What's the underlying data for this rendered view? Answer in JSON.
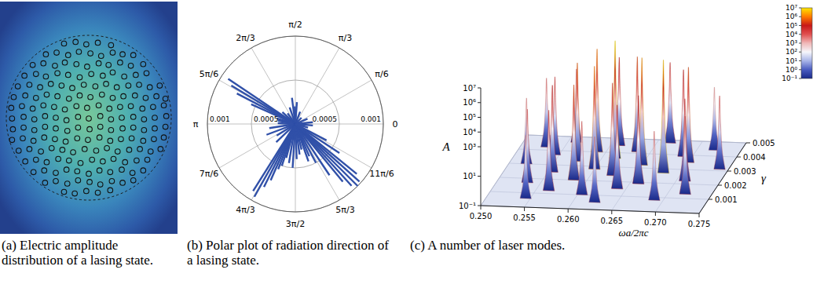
{
  "chart_data": [
    {
      "type": "scatter",
      "title": "(a) Electric amplitude distribution of a lasing state.",
      "marker": "circle",
      "tick_labels": false,
      "xlim": [
        -1,
        1
      ],
      "ylim": [
        -1,
        1
      ],
      "x": [
        -0.3,
        -0.16,
        -0.03,
        0.11,
        0.27,
        -0.52,
        -0.39,
        -0.25,
        -0.12,
        0.02,
        0.15,
        0.29,
        0.41,
        0.54,
        -0.68,
        -0.55,
        -0.41,
        -0.29,
        -0.15,
        -0.02,
        0.12,
        0.24,
        0.38,
        0.51,
        0.66,
        -0.78,
        -0.64,
        -0.52,
        -0.38,
        -0.25,
        -0.11,
        0.03,
        0.17,
        0.29,
        0.43,
        0.57,
        0.7,
        -0.86,
        -0.72,
        -0.59,
        -0.46,
        -0.33,
        -0.2,
        -0.06,
        0.08,
        0.21,
        0.34,
        0.48,
        0.61,
        0.74,
        0.86,
        -0.91,
        -0.77,
        -0.64,
        -0.51,
        -0.38,
        -0.24,
        -0.11,
        0.02,
        0.16,
        0.29,
        0.42,
        0.56,
        0.69,
        0.82,
        0.93,
        -0.94,
        -0.81,
        -0.68,
        -0.55,
        -0.42,
        -0.29,
        -0.15,
        -0.02,
        0.12,
        0.25,
        0.38,
        0.51,
        0.65,
        0.78,
        0.91,
        -0.93,
        -0.79,
        -0.66,
        -0.53,
        -0.4,
        -0.27,
        -0.13,
        0.0,
        0.14,
        0.27,
        0.4,
        0.54,
        0.67,
        0.8,
        0.94,
        -0.92,
        -0.79,
        -0.66,
        -0.53,
        -0.4,
        -0.26,
        -0.13,
        0.01,
        0.14,
        0.27,
        0.41,
        0.54,
        0.67,
        0.8,
        0.93,
        -0.93,
        -0.8,
        -0.67,
        -0.54,
        -0.41,
        -0.28,
        -0.14,
        -0.01,
        0.13,
        0.26,
        0.39,
        0.52,
        0.66,
        0.79,
        0.91,
        -0.85,
        -0.72,
        -0.58,
        -0.45,
        -0.32,
        -0.19,
        -0.05,
        0.09,
        0.22,
        0.35,
        0.49,
        0.62,
        0.75,
        0.87,
        -0.77,
        -0.64,
        -0.51,
        -0.37,
        -0.24,
        -0.1,
        0.04,
        0.17,
        0.3,
        0.44,
        0.58,
        0.71,
        -0.67,
        -0.54,
        -0.4,
        -0.27,
        -0.14,
        0.0,
        0.13,
        0.26,
        0.4,
        0.53,
        0.66,
        -0.53,
        -0.4,
        -0.26,
        -0.13,
        0.01,
        0.14,
        0.28,
        0.41,
        0.54,
        -0.3,
        -0.17,
        -0.03,
        0.11,
        0.26
      ],
      "values": [
        0.9,
        0.92,
        0.89,
        0.91,
        0.88,
        0.77,
        0.79,
        0.76,
        0.8,
        0.78,
        0.75,
        0.79,
        0.77,
        0.76,
        0.64,
        0.66,
        0.63,
        0.67,
        0.65,
        0.62,
        0.66,
        0.64,
        0.67,
        0.63,
        0.65,
        0.51,
        0.53,
        0.5,
        0.54,
        0.52,
        0.49,
        0.53,
        0.51,
        0.55,
        0.5,
        0.52,
        0.54,
        0.38,
        0.4,
        0.37,
        0.41,
        0.39,
        0.36,
        0.4,
        0.38,
        0.41,
        0.37,
        0.39,
        0.4,
        0.37,
        0.39,
        0.25,
        0.27,
        0.24,
        0.28,
        0.26,
        0.23,
        0.27,
        0.25,
        0.28,
        0.24,
        0.26,
        0.27,
        0.24,
        0.26,
        0.23,
        0.12,
        0.14,
        0.11,
        0.15,
        0.13,
        0.1,
        0.14,
        0.12,
        0.15,
        0.11,
        0.13,
        0.14,
        0.11,
        0.13,
        0.15,
        -0.01,
        0.01,
        -0.02,
        0.02,
        0.0,
        -0.03,
        0.01,
        -0.01,
        0.02,
        -0.02,
        0.0,
        0.01,
        -0.02,
        0.0,
        0.02,
        -0.14,
        -0.12,
        -0.15,
        -0.11,
        -0.13,
        -0.16,
        -0.12,
        -0.14,
        -0.11,
        -0.15,
        -0.13,
        -0.12,
        -0.15,
        -0.13,
        -0.11,
        -0.27,
        -0.25,
        -0.28,
        -0.24,
        -0.26,
        -0.29,
        -0.25,
        -0.27,
        -0.24,
        -0.28,
        -0.26,
        -0.25,
        -0.28,
        -0.26,
        -0.24,
        -0.4,
        -0.38,
        -0.41,
        -0.37,
        -0.39,
        -0.42,
        -0.38,
        -0.4,
        -0.37,
        -0.41,
        -0.39,
        -0.38,
        -0.41,
        -0.38,
        -0.53,
        -0.51,
        -0.54,
        -0.5,
        -0.52,
        -0.55,
        -0.51,
        -0.53,
        -0.5,
        -0.54,
        -0.52,
        -0.51,
        -0.66,
        -0.64,
        -0.67,
        -0.63,
        -0.65,
        -0.68,
        -0.64,
        -0.66,
        -0.63,
        -0.67,
        -0.64,
        -0.79,
        -0.77,
        -0.8,
        -0.76,
        -0.78,
        -0.81,
        -0.77,
        -0.79,
        -0.76,
        -0.9,
        -0.92,
        -0.89,
        -0.91,
        -0.88
      ]
    },
    {
      "type": "polar",
      "title": "(b) Polar plot of radiation direction of a lasing state.",
      "color": "#3050a8",
      "grid": true,
      "rlim": [
        0,
        0.001
      ],
      "rticks": [
        0.0005,
        0.001
      ],
      "thetaticks": [
        0,
        {
          "value": 0.5236,
          "label": "π/6"
        },
        {
          "value": 1.0472,
          "label": "π/3"
        },
        {
          "value": 1.5708,
          "label": "π/2"
        },
        {
          "value": 2.0944,
          "label": "2π/3"
        },
        {
          "value": 2.618,
          "label": "5π/6"
        },
        {
          "value": 3.1416,
          "label": "π"
        },
        {
          "value": 3.6652,
          "label": "7π/6"
        },
        {
          "value": 4.1888,
          "label": "4π/3"
        },
        {
          "value": 4.7124,
          "label": "3π/2"
        },
        {
          "value": 5.236,
          "label": "5π/3"
        },
        {
          "value": 5.7596,
          "label": "11π/6"
        }
      ],
      "theta": [
        0.1,
        0.4,
        0.8,
        1.2,
        1.5,
        1.6,
        1.7,
        1.9,
        2.2,
        2.4,
        2.55,
        2.6,
        2.66,
        2.72,
        2.85,
        2.95,
        3.1,
        3.3,
        3.5,
        3.7,
        3.9,
        4.15,
        4.2,
        4.25,
        4.3,
        4.35,
        4.4,
        4.45,
        4.55,
        4.65,
        4.75,
        4.85,
        4.95,
        5.05,
        5.12,
        5.2,
        5.3,
        5.4,
        5.45,
        5.5,
        5.55,
        5.6,
        5.7,
        5.8,
        6.0,
        6.2
      ],
      "values": [
        0.0002,
        0.00015,
        0.0001,
        0.00015,
        0.00025,
        0.0002,
        0.0003,
        0.0002,
        0.00015,
        0.0002,
        0.00092,
        0.00085,
        0.00075,
        0.00055,
        0.00022,
        0.0002,
        0.0002,
        0.0003,
        0.00035,
        0.00025,
        0.0003,
        0.0009,
        0.00095,
        0.0008,
        0.0007,
        0.00055,
        0.0005,
        0.0004,
        0.00045,
        0.0005,
        0.0004,
        0.00035,
        0.0003,
        0.00045,
        0.0004,
        0.0005,
        0.0007,
        0.00085,
        0.00095,
        0.001,
        0.00098,
        0.0009,
        0.0006,
        0.0004,
        0.00015,
        0.0002
      ]
    },
    {
      "type": "surface3d",
      "title": "(c) A number of laser modes.",
      "x_label": "ωa/2πc",
      "y_label": "A",
      "z_label": "γ",
      "log": "y",
      "xlim": [
        0.25,
        0.275
      ],
      "xticks": [
        {
          "value": 0.25,
          "label": "0.250"
        },
        0.255,
        {
          "value": 0.26,
          "label": "0.260"
        },
        0.265,
        {
          "value": 0.27,
          "label": "0.270"
        },
        0.275
      ],
      "ylim": [
        0.1,
        10000000
      ],
      "yticks": [
        {
          "value": 0.1,
          "label": "10⁻¹"
        },
        {
          "value": 10,
          "label": "10¹"
        },
        {
          "value": 1000,
          "label": "10³"
        },
        {
          "value": 10000,
          "label": "10⁴"
        },
        {
          "value": 100000,
          "label": "10⁵"
        },
        {
          "value": 1000000,
          "label": "10⁶"
        },
        {
          "value": 10000000,
          "label": "10⁷"
        }
      ],
      "zlim": [
        0,
        0.005
      ],
      "zticks": [
        0.001,
        0.002,
        0.003,
        0.004,
        0.005
      ],
      "x": [
        0.2665,
        0.256,
        0.261,
        0.272,
        0.253,
        0.2635,
        0.259,
        0.269,
        0.2545,
        0.2615,
        0.27,
        0.2575,
        0.265,
        0.274,
        0.252,
        0.26,
        0.268,
        0.2555,
        0.2625,
        0.271,
        0.2585,
        0.266,
        0.2535,
        0.264,
        0.272,
        0.2565,
        0.2605,
        0.269,
        0.2545,
        0.2625
      ],
      "z": [
        0.0048,
        0.0046,
        0.0045,
        0.0044,
        0.0042,
        0.0041,
        0.004,
        0.0039,
        0.0037,
        0.0036,
        0.0035,
        0.0033,
        0.0032,
        0.0031,
        0.003,
        0.0028,
        0.0027,
        0.0025,
        0.0024,
        0.0022,
        0.002,
        0.0019,
        0.0017,
        0.0015,
        0.0013,
        0.0012,
        0.001,
        0.0008,
        0.0006,
        0.0005
      ],
      "values": [
        30000,
        10000,
        100000,
        2000,
        5000,
        300000,
        1000000,
        80000,
        20000,
        10000000,
        300000,
        500000,
        2000000,
        10000,
        3000,
        1000000,
        5000000,
        80000,
        200000,
        40000,
        300000,
        100000,
        10000,
        50000,
        20000,
        30000,
        10000,
        5000,
        2000,
        3000
      ],
      "colorbar": {
        "range": [
          0.1,
          10000000
        ],
        "ticks": [
          {
            "value": 0.1,
            "label": "10⁻¹"
          },
          {
            "value": 1,
            "label": "10⁰"
          },
          {
            "value": 10,
            "label": "10¹"
          },
          {
            "value": 100,
            "label": "10²"
          },
          {
            "value": 1000,
            "label": "10³"
          },
          {
            "value": 10000,
            "label": "10⁴"
          },
          {
            "value": 100000,
            "label": "10⁵"
          },
          {
            "value": 1000000,
            "label": "10⁶"
          },
          {
            "value": 10000000,
            "label": "10⁷"
          }
        ]
      }
    }
  ]
}
